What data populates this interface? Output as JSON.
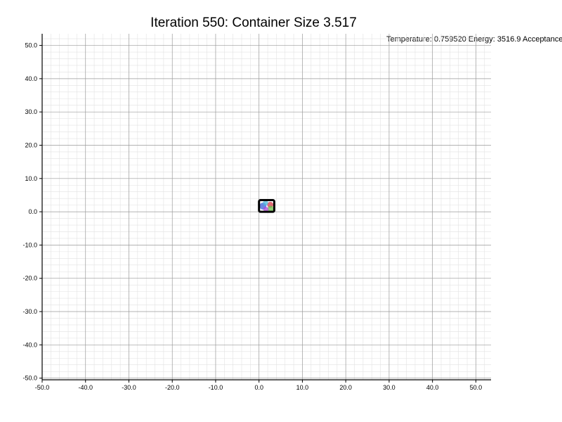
{
  "chart_data": {
    "type": "scatter",
    "title": "Iteration 550: Container Size 3.517",
    "status_text": "Temperature: 0.759520 Energy: 3516.9 Acceptance",
    "xlim": [
      -50,
      53.5
    ],
    "ylim": [
      -50.5,
      53.5
    ],
    "x_ticks": [
      "-50.0",
      "-40.0",
      "-30.0",
      "-20.0",
      "-10.0",
      "0.0",
      "10.0",
      "20.0",
      "30.0",
      "40.0",
      "50.0"
    ],
    "y_ticks": [
      "50.0",
      "40.0",
      "30.0",
      "20.0",
      "10.0",
      "0.0",
      "-10.0",
      "-20.0",
      "-30.0",
      "-40.0",
      "-50.0"
    ],
    "grid": true,
    "container": {
      "x": 0,
      "y": 0,
      "size": 3.517
    },
    "circles": [
      {
        "x": 0.9,
        "y": 1.7,
        "r": 0.8,
        "color": "#3a5fd8"
      },
      {
        "x": 2.6,
        "y": 2.1,
        "r": 0.7,
        "color": "#d83a4a"
      },
      {
        "x": 2.7,
        "y": 0.9,
        "r": 0.7,
        "color": "#6cc04a"
      },
      {
        "x": 1.6,
        "y": 0.7,
        "r": 0.6,
        "color": "#b04ad8"
      },
      {
        "x": 1.5,
        "y": 2.6,
        "r": 0.6,
        "color": "#4ab8d8"
      }
    ]
  }
}
